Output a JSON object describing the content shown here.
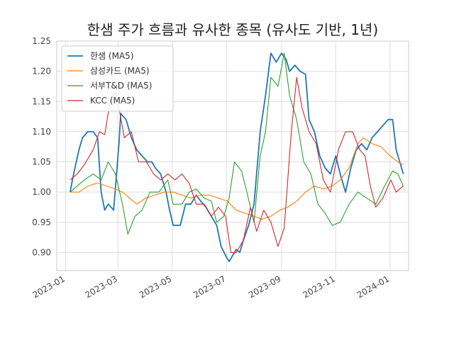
{
  "chart_data": {
    "type": "line",
    "title": "한샘 주가 흐름과 유사한 종목 (유사도 기반, 1년)",
    "xlabel": "",
    "ylabel": "",
    "ylim": [
      0.87,
      1.25
    ],
    "xlim": [
      "2022-12-22",
      "2024-01-22"
    ],
    "x_ticks": [
      "2023-01",
      "2023-03",
      "2023-05",
      "2023-07",
      "2023-09",
      "2023-11",
      "2024-01"
    ],
    "y_ticks": [
      "0.90",
      "0.95",
      "1.00",
      "1.05",
      "1.10",
      "1.15",
      "1.20",
      "1.25"
    ],
    "grid": true,
    "legend_position": "top-left",
    "colors": {
      "series_0": "#1f77b4",
      "series_1": "#ff7f0e",
      "series_2": "#2ca02c",
      "series_3": "#d62728"
    },
    "series": [
      {
        "name": "한샘 (MA5)",
        "points": [
          [
            "2023-01-06",
            1.0
          ],
          [
            "2023-01-10",
            1.03
          ],
          [
            "2023-01-16",
            1.07
          ],
          [
            "2023-01-20",
            1.09
          ],
          [
            "2023-01-26",
            1.1
          ],
          [
            "2023-02-01",
            1.1
          ],
          [
            "2023-02-06",
            1.09
          ],
          [
            "2023-02-10",
            1.0
          ],
          [
            "2023-02-14",
            0.97
          ],
          [
            "2023-02-18",
            0.98
          ],
          [
            "2023-02-24",
            0.97
          ],
          [
            "2023-03-02",
            1.08
          ],
          [
            "2023-03-04",
            1.13
          ],
          [
            "2023-03-10",
            1.12
          ],
          [
            "2023-03-16",
            1.09
          ],
          [
            "2023-03-22",
            1.07
          ],
          [
            "2023-03-28",
            1.06
          ],
          [
            "2023-04-03",
            1.05
          ],
          [
            "2023-04-08",
            1.05
          ],
          [
            "2023-04-12",
            1.04
          ],
          [
            "2023-04-18",
            1.03
          ],
          [
            "2023-04-24",
            1.0
          ],
          [
            "2023-04-28",
            0.97
          ],
          [
            "2023-05-02",
            0.945
          ],
          [
            "2023-05-10",
            0.945
          ],
          [
            "2023-05-16",
            0.98
          ],
          [
            "2023-05-22",
            0.98
          ],
          [
            "2023-05-28",
            0.995
          ],
          [
            "2023-06-02",
            0.985
          ],
          [
            "2023-06-08",
            0.975
          ],
          [
            "2023-06-14",
            0.96
          ],
          [
            "2023-06-20",
            0.945
          ],
          [
            "2023-06-25",
            0.91
          ],
          [
            "2023-06-30",
            0.895
          ],
          [
            "2023-07-04",
            0.885
          ],
          [
            "2023-07-08",
            0.895
          ],
          [
            "2023-07-12",
            0.905
          ],
          [
            "2023-07-16",
            0.9
          ],
          [
            "2023-07-20",
            0.92
          ],
          [
            "2023-07-26",
            0.945
          ],
          [
            "2023-08-01",
            0.98
          ],
          [
            "2023-08-08",
            1.1
          ],
          [
            "2023-08-14",
            1.16
          ],
          [
            "2023-08-20",
            1.23
          ],
          [
            "2023-08-26",
            1.215
          ],
          [
            "2023-09-01",
            1.23
          ],
          [
            "2023-09-06",
            1.22
          ],
          [
            "2023-09-10",
            1.2
          ],
          [
            "2023-09-16",
            1.21
          ],
          [
            "2023-09-22",
            1.2
          ],
          [
            "2023-09-28",
            1.195
          ],
          [
            "2023-10-02",
            1.12
          ],
          [
            "2023-10-08",
            1.1
          ],
          [
            "2023-10-14",
            1.06
          ],
          [
            "2023-10-20",
            1.04
          ],
          [
            "2023-10-26",
            1.03
          ],
          [
            "2023-11-01",
            1.06
          ],
          [
            "2023-11-06",
            1.03
          ],
          [
            "2023-11-12",
            1.0
          ],
          [
            "2023-11-18",
            1.04
          ],
          [
            "2023-11-24",
            1.07
          ],
          [
            "2023-11-30",
            1.08
          ],
          [
            "2023-12-06",
            1.07
          ],
          [
            "2023-12-12",
            1.09
          ],
          [
            "2023-12-18",
            1.1
          ],
          [
            "2023-12-24",
            1.11
          ],
          [
            "2023-12-30",
            1.12
          ],
          [
            "2024-01-04",
            1.12
          ],
          [
            "2024-01-08",
            1.07
          ],
          [
            "2024-01-12",
            1.05
          ],
          [
            "2024-01-16",
            1.03
          ]
        ]
      },
      {
        "name": "삼성카드 (MA5)",
        "points": [
          [
            "2023-01-06",
            1.0
          ],
          [
            "2023-01-16",
            1.0
          ],
          [
            "2023-01-26",
            1.01
          ],
          [
            "2023-02-06",
            1.015
          ],
          [
            "2023-02-16",
            1.01
          ],
          [
            "2023-02-26",
            1.005
          ],
          [
            "2023-03-06",
            1.0
          ],
          [
            "2023-03-14",
            0.99
          ],
          [
            "2023-03-22",
            0.98
          ],
          [
            "2023-04-01",
            0.99
          ],
          [
            "2023-04-12",
            0.995
          ],
          [
            "2023-04-22",
            1.0
          ],
          [
            "2023-05-02",
            1.0
          ],
          [
            "2023-05-12",
            0.995
          ],
          [
            "2023-05-22",
            0.99
          ],
          [
            "2023-06-02",
            0.995
          ],
          [
            "2023-06-12",
            0.995
          ],
          [
            "2023-06-22",
            0.99
          ],
          [
            "2023-07-02",
            0.985
          ],
          [
            "2023-07-12",
            0.97
          ],
          [
            "2023-07-22",
            0.965
          ],
          [
            "2023-08-01",
            0.96
          ],
          [
            "2023-08-10",
            0.955
          ],
          [
            "2023-08-20",
            0.96
          ],
          [
            "2023-08-30",
            0.97
          ],
          [
            "2023-09-08",
            0.975
          ],
          [
            "2023-09-18",
            0.985
          ],
          [
            "2023-09-28",
            1.0
          ],
          [
            "2023-10-08",
            1.01
          ],
          [
            "2023-10-18",
            1.005
          ],
          [
            "2023-10-28",
            1.01
          ],
          [
            "2023-11-06",
            1.02
          ],
          [
            "2023-11-16",
            1.04
          ],
          [
            "2023-11-26",
            1.08
          ],
          [
            "2023-12-02",
            1.09
          ],
          [
            "2023-12-12",
            1.08
          ],
          [
            "2023-12-22",
            1.075
          ],
          [
            "2024-01-01",
            1.06
          ],
          [
            "2024-01-10",
            1.05
          ],
          [
            "2024-01-16",
            1.045
          ]
        ]
      },
      {
        "name": "서부T&D (MA5)",
        "points": [
          [
            "2023-01-06",
            1.0
          ],
          [
            "2023-01-14",
            1.01
          ],
          [
            "2023-01-22",
            1.02
          ],
          [
            "2023-02-01",
            1.03
          ],
          [
            "2023-02-10",
            1.02
          ],
          [
            "2023-02-18",
            1.05
          ],
          [
            "2023-02-26",
            1.03
          ],
          [
            "2023-03-06",
            0.98
          ],
          [
            "2023-03-12",
            0.93
          ],
          [
            "2023-03-20",
            0.96
          ],
          [
            "2023-03-28",
            0.97
          ],
          [
            "2023-04-06",
            1.0
          ],
          [
            "2023-04-16",
            1.0
          ],
          [
            "2023-04-26",
            1.02
          ],
          [
            "2023-05-02",
            0.98
          ],
          [
            "2023-05-12",
            0.98
          ],
          [
            "2023-05-20",
            1.0
          ],
          [
            "2023-05-28",
            1.005
          ],
          [
            "2023-06-06",
            0.99
          ],
          [
            "2023-06-14",
            0.985
          ],
          [
            "2023-06-20",
            0.95
          ],
          [
            "2023-06-28",
            0.96
          ],
          [
            "2023-07-04",
            0.99
          ],
          [
            "2023-07-10",
            1.05
          ],
          [
            "2023-07-18",
            1.035
          ],
          [
            "2023-07-24",
            1.0
          ],
          [
            "2023-08-01",
            0.95
          ],
          [
            "2023-08-08",
            1.06
          ],
          [
            "2023-08-14",
            1.1
          ],
          [
            "2023-08-20",
            1.19
          ],
          [
            "2023-08-28",
            1.175
          ],
          [
            "2023-09-04",
            1.23
          ],
          [
            "2023-09-10",
            1.16
          ],
          [
            "2023-09-18",
            1.12
          ],
          [
            "2023-09-26",
            1.05
          ],
          [
            "2023-10-04",
            1.03
          ],
          [
            "2023-10-12",
            0.98
          ],
          [
            "2023-10-20",
            0.965
          ],
          [
            "2023-10-28",
            0.945
          ],
          [
            "2023-11-06",
            0.95
          ],
          [
            "2023-11-16",
            0.98
          ],
          [
            "2023-11-26",
            1.0
          ],
          [
            "2023-12-06",
            0.99
          ],
          [
            "2023-12-16",
            0.98
          ],
          [
            "2023-12-26",
            1.01
          ],
          [
            "2024-01-04",
            1.035
          ],
          [
            "2024-01-10",
            1.03
          ],
          [
            "2024-01-16",
            1.01
          ]
        ]
      },
      {
        "name": "KCC (MA5)",
        "points": [
          [
            "2023-01-06",
            1.02
          ],
          [
            "2023-01-14",
            1.03
          ],
          [
            "2023-01-22",
            1.045
          ],
          [
            "2023-02-01",
            1.07
          ],
          [
            "2023-02-08",
            1.1
          ],
          [
            "2023-02-14",
            1.095
          ],
          [
            "2023-02-20",
            1.15
          ],
          [
            "2023-02-26",
            1.165
          ],
          [
            "2023-03-02",
            1.14
          ],
          [
            "2023-03-08",
            1.09
          ],
          [
            "2023-03-16",
            1.1
          ],
          [
            "2023-03-24",
            1.05
          ],
          [
            "2023-04-02",
            1.05
          ],
          [
            "2023-04-10",
            1.03
          ],
          [
            "2023-04-18",
            1.02
          ],
          [
            "2023-04-26",
            1.03
          ],
          [
            "2023-05-04",
            1.02
          ],
          [
            "2023-05-12",
            1.03
          ],
          [
            "2023-05-20",
            1.015
          ],
          [
            "2023-05-28",
            0.98
          ],
          [
            "2023-06-06",
            0.98
          ],
          [
            "2023-06-14",
            0.96
          ],
          [
            "2023-06-22",
            0.975
          ],
          [
            "2023-06-30",
            0.96
          ],
          [
            "2023-07-06",
            0.9
          ],
          [
            "2023-07-12",
            0.9
          ],
          [
            "2023-07-20",
            0.92
          ],
          [
            "2023-07-28",
            0.975
          ],
          [
            "2023-08-04",
            0.935
          ],
          [
            "2023-08-12",
            0.97
          ],
          [
            "2023-08-20",
            0.95
          ],
          [
            "2023-08-28",
            0.91
          ],
          [
            "2023-09-04",
            0.94
          ],
          [
            "2023-09-12",
            1.1
          ],
          [
            "2023-09-18",
            1.19
          ],
          [
            "2023-09-24",
            1.14
          ],
          [
            "2023-10-02",
            1.1
          ],
          [
            "2023-10-10",
            1.08
          ],
          [
            "2023-10-18",
            1.02
          ],
          [
            "2023-10-26",
            1.0
          ],
          [
            "2023-11-04",
            1.07
          ],
          [
            "2023-11-12",
            1.1
          ],
          [
            "2023-11-20",
            1.1
          ],
          [
            "2023-11-28",
            1.07
          ],
          [
            "2023-12-04",
            1.06
          ],
          [
            "2023-12-10",
            1.01
          ],
          [
            "2023-12-16",
            0.975
          ],
          [
            "2023-12-24",
            0.99
          ],
          [
            "2024-01-02",
            1.02
          ],
          [
            "2024-01-08",
            1.0
          ],
          [
            "2024-01-16",
            1.01
          ]
        ]
      }
    ]
  }
}
